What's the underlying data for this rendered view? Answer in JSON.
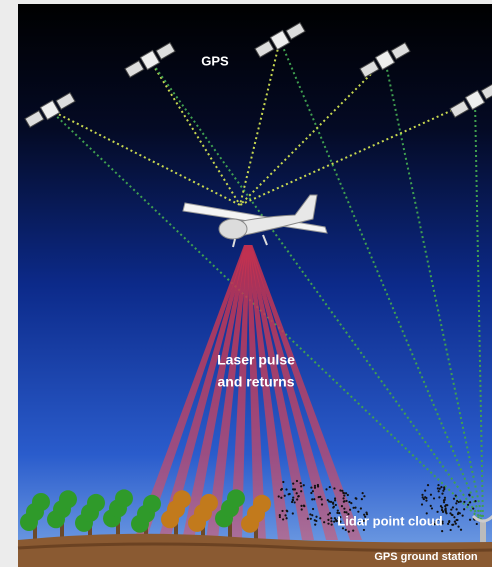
{
  "labels": {
    "gps": "GPS",
    "laser_pulse": [
      "Laser pulse",
      "and returns"
    ],
    "point_cloud": "Lidar point cloud",
    "ground_station": "GPS ground station"
  }
}
